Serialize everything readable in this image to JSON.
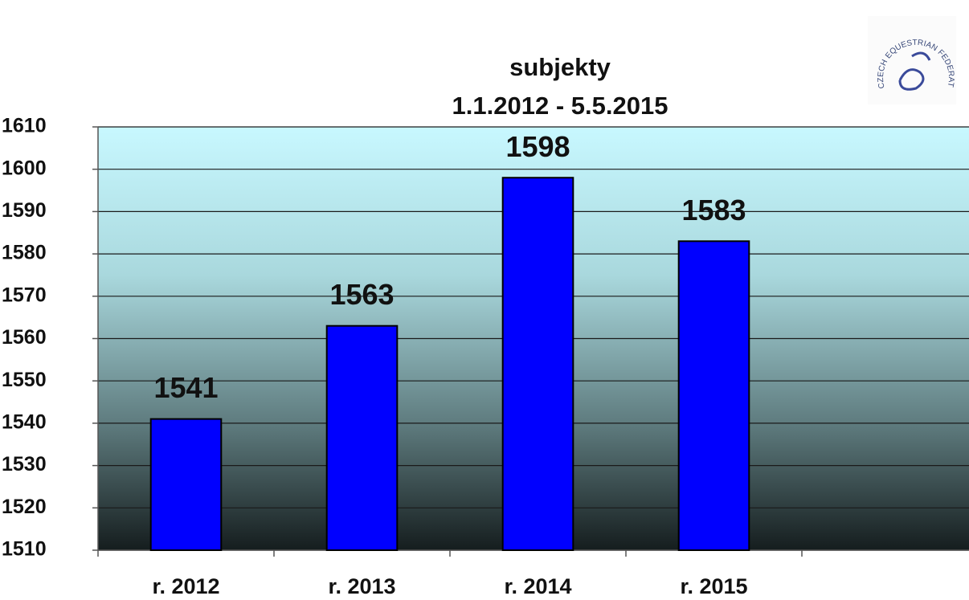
{
  "chart_data": {
    "type": "bar",
    "title": "subjekty",
    "subtitle": "1.1.2012 - 5.5.2015",
    "annotations": [
      "CZECH EQUESTRIAN FEDERATION"
    ],
    "categories": [
      "r. 2012",
      "r. 2013",
      "r. 2014",
      "r. 2015",
      null
    ],
    "values": [
      1541,
      1563,
      1598,
      1583,
      null
    ],
    "color": "#0000ff",
    "ylim": [
      1510,
      1610
    ],
    "yticks": [
      1510,
      1520,
      1530,
      1540,
      1550,
      1560,
      1570,
      1580,
      1590,
      1600,
      1610
    ],
    "grid": true
  }
}
